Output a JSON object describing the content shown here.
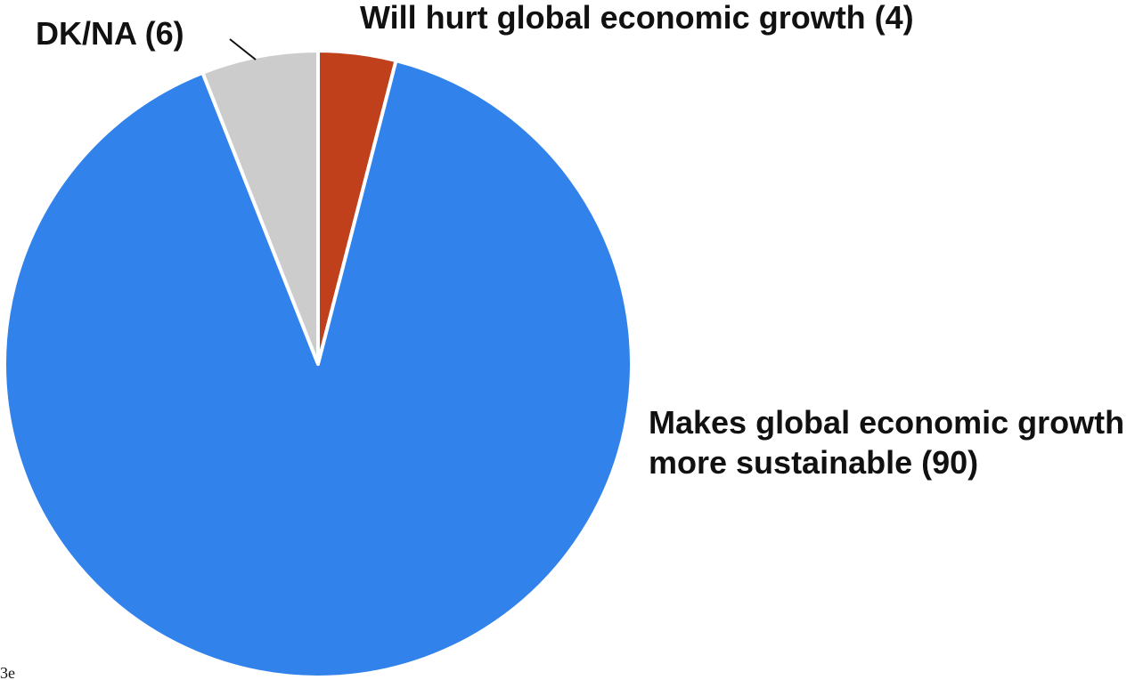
{
  "chart_data": {
    "type": "pie",
    "title": "",
    "slices": [
      {
        "label": "Will hurt global economic growth (4)",
        "value": 4,
        "color": "#c0401b"
      },
      {
        "label": "Makes global economic growth more sustainable (90)",
        "label_lines": [
          "Makes global economic growth",
          "more sustainable (90)"
        ],
        "value": 90,
        "color": "#3182ea"
      },
      {
        "label": "DK/NA (6)",
        "value": 6,
        "color": "#cccccc"
      }
    ],
    "start": "12 o'clock",
    "direction": "clockwise"
  },
  "footnote": "-3e"
}
